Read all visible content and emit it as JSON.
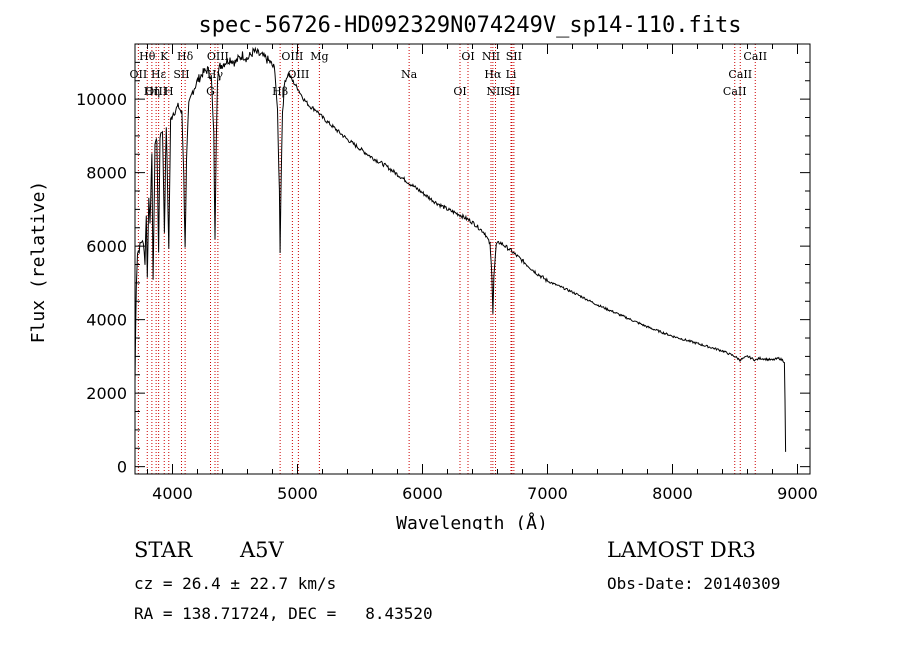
{
  "chart_data": {
    "type": "line",
    "title": "spec-56726-HD092329N074249V_sp14-110.fits",
    "xlabel": "Wavelength (Å)",
    "ylabel": "Flux (relative)",
    "xlim": [
      3700,
      9100
    ],
    "ylim": [
      -200,
      11500
    ],
    "xticks": [
      4000,
      5000,
      6000,
      7000,
      8000,
      9000
    ],
    "yticks": [
      0,
      2000,
      4000,
      6000,
      8000,
      10000
    ],
    "grid": false,
    "series": [
      {
        "name": "flux",
        "x": [
          3700,
          3710,
          3720,
          3740,
          3760,
          3780,
          3790,
          3798,
          3810,
          3820,
          3835,
          3845,
          3860,
          3875,
          3889,
          3900,
          3920,
          3935,
          3950,
          3970,
          3985,
          4000,
          4020,
          4050,
          4075,
          4090,
          4101,
          4112,
          4130,
          4160,
          4200,
          4240,
          4280,
          4310,
          4330,
          4340,
          4350,
          4360,
          4380,
          4420,
          4460,
          4500,
          4560,
          4600,
          4650,
          4700,
          4750,
          4780,
          4820,
          4840,
          4855,
          4861,
          4867,
          4880,
          4900,
          4930,
          4960,
          5000,
          5050,
          5100,
          5150,
          5200,
          5300,
          5400,
          5500,
          5600,
          5700,
          5800,
          5900,
          6000,
          6100,
          6200,
          6300,
          6400,
          6500,
          6540,
          6555,
          6563,
          6571,
          6590,
          6620,
          6700,
          6800,
          6900,
          7000,
          7200,
          7400,
          7600,
          7800,
          8000,
          8200,
          8400,
          8498,
          8540,
          8600,
          8662,
          8700,
          8800,
          8850,
          8880,
          8895,
          8900,
          8905
        ],
        "values": [
          2300,
          5000,
          5800,
          6000,
          6200,
          5600,
          6900,
          5100,
          7300,
          6700,
          8400,
          5100,
          8800,
          8900,
          5700,
          9000,
          9200,
          6400,
          9300,
          6000,
          9400,
          9600,
          9700,
          9800,
          9600,
          8000,
          5900,
          8400,
          9800,
          10200,
          10500,
          10700,
          10800,
          10600,
          9000,
          6100,
          9000,
          10600,
          10900,
          11000,
          11100,
          11000,
          11200,
          11100,
          11300,
          11200,
          11100,
          11000,
          10800,
          9600,
          7500,
          5900,
          7500,
          9700,
          10500,
          10700,
          10500,
          10300,
          10000,
          9800,
          9700,
          9500,
          9200,
          8900,
          8650,
          8400,
          8200,
          7950,
          7700,
          7450,
          7200,
          7000,
          6850,
          6650,
          6350,
          6050,
          5200,
          4200,
          5200,
          6050,
          6100,
          5900,
          5600,
          5300,
          5050,
          4750,
          4400,
          4100,
          3800,
          3550,
          3350,
          3150,
          3000,
          2900,
          3000,
          2900,
          2950,
          2900,
          2950,
          2900,
          2850,
          1800,
          400
        ]
      }
    ],
    "lines": [
      {
        "label": "Hθ",
        "wavelength": 3798
      },
      {
        "label": "OII",
        "wavelength": 3727
      },
      {
        "label": "OIII",
        "wavelength": 3869
      },
      {
        "label": "K",
        "wavelength": 3934
      },
      {
        "label": "Hε",
        "wavelength": 3889
      },
      {
        "label": "Hη",
        "wavelength": 3835
      },
      {
        "label": "Hδ",
        "wavelength": 4101
      },
      {
        "label": "SII",
        "wavelength": 4072
      },
      {
        "label": "H",
        "wavelength": 3970
      },
      {
        "label": "OIII",
        "wavelength": 4363
      },
      {
        "label": "Hγ",
        "wavelength": 4340
      },
      {
        "label": "G",
        "wavelength": 4304
      },
      {
        "label": "OIII",
        "wavelength": 4959
      },
      {
        "label": "OIII",
        "wavelength": 5007
      },
      {
        "label": "Hβ",
        "wavelength": 4861
      },
      {
        "label": "Mg",
        "wavelength": 5175
      },
      {
        "label": "Na",
        "wavelength": 5893
      },
      {
        "label": "OI",
        "wavelength": 6300
      },
      {
        "label": "OI",
        "wavelength": 6364
      },
      {
        "label": "Hα",
        "wavelength": 6563
      },
      {
        "label": "SII",
        "wavelength": 6716
      },
      {
        "label": "NII",
        "wavelength": 6548
      },
      {
        "label": "Li",
        "wavelength": 6708
      },
      {
        "label": "NII",
        "wavelength": 6584
      },
      {
        "label": "SII",
        "wavelength": 6731
      },
      {
        "label": "CaII",
        "wavelength": 8542
      },
      {
        "label": "CaII",
        "wavelength": 8498
      },
      {
        "label": "CaII",
        "wavelength": 8662
      }
    ]
  },
  "info": {
    "object_class": "STAR",
    "subclass": "A5V",
    "survey": "LAMOST DR3",
    "cz": "cz = 26.4 ± 22.7 km/s",
    "obs_date": "Obs-Date: 20140309",
    "ra_dec": "RA = 138.71724, DEC =   8.43520"
  }
}
